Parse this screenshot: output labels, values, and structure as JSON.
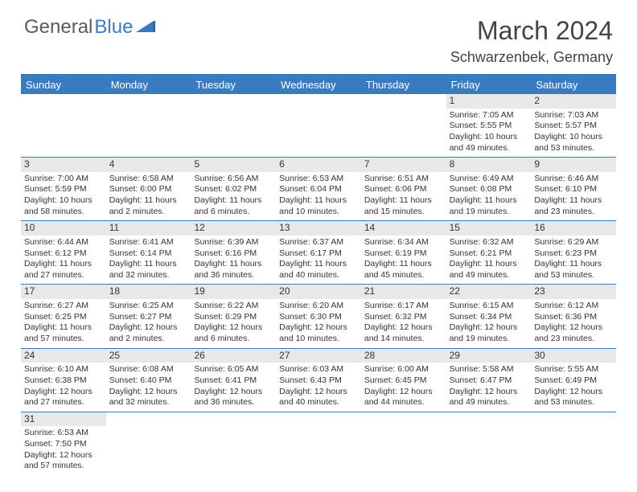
{
  "logo": {
    "text1": "General",
    "text2": "Blue"
  },
  "title": "March 2024",
  "location": "Schwarzenbek, Germany",
  "colors": {
    "header_bg": "#3a7bbf",
    "daynum_bg": "#e8e8e8",
    "text": "#333333",
    "border": "#3a7bbf"
  },
  "day_headers": [
    "Sunday",
    "Monday",
    "Tuesday",
    "Wednesday",
    "Thursday",
    "Friday",
    "Saturday"
  ],
  "weeks": [
    [
      null,
      null,
      null,
      null,
      null,
      {
        "n": "1",
        "sr": "Sunrise: 7:05 AM",
        "ss": "Sunset: 5:55 PM",
        "dl1": "Daylight: 10 hours",
        "dl2": "and 49 minutes."
      },
      {
        "n": "2",
        "sr": "Sunrise: 7:03 AM",
        "ss": "Sunset: 5:57 PM",
        "dl1": "Daylight: 10 hours",
        "dl2": "and 53 minutes."
      }
    ],
    [
      {
        "n": "3",
        "sr": "Sunrise: 7:00 AM",
        "ss": "Sunset: 5:59 PM",
        "dl1": "Daylight: 10 hours",
        "dl2": "and 58 minutes."
      },
      {
        "n": "4",
        "sr": "Sunrise: 6:58 AM",
        "ss": "Sunset: 6:00 PM",
        "dl1": "Daylight: 11 hours",
        "dl2": "and 2 minutes."
      },
      {
        "n": "5",
        "sr": "Sunrise: 6:56 AM",
        "ss": "Sunset: 6:02 PM",
        "dl1": "Daylight: 11 hours",
        "dl2": "and 6 minutes."
      },
      {
        "n": "6",
        "sr": "Sunrise: 6:53 AM",
        "ss": "Sunset: 6:04 PM",
        "dl1": "Daylight: 11 hours",
        "dl2": "and 10 minutes."
      },
      {
        "n": "7",
        "sr": "Sunrise: 6:51 AM",
        "ss": "Sunset: 6:06 PM",
        "dl1": "Daylight: 11 hours",
        "dl2": "and 15 minutes."
      },
      {
        "n": "8",
        "sr": "Sunrise: 6:49 AM",
        "ss": "Sunset: 6:08 PM",
        "dl1": "Daylight: 11 hours",
        "dl2": "and 19 minutes."
      },
      {
        "n": "9",
        "sr": "Sunrise: 6:46 AM",
        "ss": "Sunset: 6:10 PM",
        "dl1": "Daylight: 11 hours",
        "dl2": "and 23 minutes."
      }
    ],
    [
      {
        "n": "10",
        "sr": "Sunrise: 6:44 AM",
        "ss": "Sunset: 6:12 PM",
        "dl1": "Daylight: 11 hours",
        "dl2": "and 27 minutes."
      },
      {
        "n": "11",
        "sr": "Sunrise: 6:41 AM",
        "ss": "Sunset: 6:14 PM",
        "dl1": "Daylight: 11 hours",
        "dl2": "and 32 minutes."
      },
      {
        "n": "12",
        "sr": "Sunrise: 6:39 AM",
        "ss": "Sunset: 6:16 PM",
        "dl1": "Daylight: 11 hours",
        "dl2": "and 36 minutes."
      },
      {
        "n": "13",
        "sr": "Sunrise: 6:37 AM",
        "ss": "Sunset: 6:17 PM",
        "dl1": "Daylight: 11 hours",
        "dl2": "and 40 minutes."
      },
      {
        "n": "14",
        "sr": "Sunrise: 6:34 AM",
        "ss": "Sunset: 6:19 PM",
        "dl1": "Daylight: 11 hours",
        "dl2": "and 45 minutes."
      },
      {
        "n": "15",
        "sr": "Sunrise: 6:32 AM",
        "ss": "Sunset: 6:21 PM",
        "dl1": "Daylight: 11 hours",
        "dl2": "and 49 minutes."
      },
      {
        "n": "16",
        "sr": "Sunrise: 6:29 AM",
        "ss": "Sunset: 6:23 PM",
        "dl1": "Daylight: 11 hours",
        "dl2": "and 53 minutes."
      }
    ],
    [
      {
        "n": "17",
        "sr": "Sunrise: 6:27 AM",
        "ss": "Sunset: 6:25 PM",
        "dl1": "Daylight: 11 hours",
        "dl2": "and 57 minutes."
      },
      {
        "n": "18",
        "sr": "Sunrise: 6:25 AM",
        "ss": "Sunset: 6:27 PM",
        "dl1": "Daylight: 12 hours",
        "dl2": "and 2 minutes."
      },
      {
        "n": "19",
        "sr": "Sunrise: 6:22 AM",
        "ss": "Sunset: 6:29 PM",
        "dl1": "Daylight: 12 hours",
        "dl2": "and 6 minutes."
      },
      {
        "n": "20",
        "sr": "Sunrise: 6:20 AM",
        "ss": "Sunset: 6:30 PM",
        "dl1": "Daylight: 12 hours",
        "dl2": "and 10 minutes."
      },
      {
        "n": "21",
        "sr": "Sunrise: 6:17 AM",
        "ss": "Sunset: 6:32 PM",
        "dl1": "Daylight: 12 hours",
        "dl2": "and 14 minutes."
      },
      {
        "n": "22",
        "sr": "Sunrise: 6:15 AM",
        "ss": "Sunset: 6:34 PM",
        "dl1": "Daylight: 12 hours",
        "dl2": "and 19 minutes."
      },
      {
        "n": "23",
        "sr": "Sunrise: 6:12 AM",
        "ss": "Sunset: 6:36 PM",
        "dl1": "Daylight: 12 hours",
        "dl2": "and 23 minutes."
      }
    ],
    [
      {
        "n": "24",
        "sr": "Sunrise: 6:10 AM",
        "ss": "Sunset: 6:38 PM",
        "dl1": "Daylight: 12 hours",
        "dl2": "and 27 minutes."
      },
      {
        "n": "25",
        "sr": "Sunrise: 6:08 AM",
        "ss": "Sunset: 6:40 PM",
        "dl1": "Daylight: 12 hours",
        "dl2": "and 32 minutes."
      },
      {
        "n": "26",
        "sr": "Sunrise: 6:05 AM",
        "ss": "Sunset: 6:41 PM",
        "dl1": "Daylight: 12 hours",
        "dl2": "and 36 minutes."
      },
      {
        "n": "27",
        "sr": "Sunrise: 6:03 AM",
        "ss": "Sunset: 6:43 PM",
        "dl1": "Daylight: 12 hours",
        "dl2": "and 40 minutes."
      },
      {
        "n": "28",
        "sr": "Sunrise: 6:00 AM",
        "ss": "Sunset: 6:45 PM",
        "dl1": "Daylight: 12 hours",
        "dl2": "and 44 minutes."
      },
      {
        "n": "29",
        "sr": "Sunrise: 5:58 AM",
        "ss": "Sunset: 6:47 PM",
        "dl1": "Daylight: 12 hours",
        "dl2": "and 49 minutes."
      },
      {
        "n": "30",
        "sr": "Sunrise: 5:55 AM",
        "ss": "Sunset: 6:49 PM",
        "dl1": "Daylight: 12 hours",
        "dl2": "and 53 minutes."
      }
    ],
    [
      {
        "n": "31",
        "sr": "Sunrise: 6:53 AM",
        "ss": "Sunset: 7:50 PM",
        "dl1": "Daylight: 12 hours",
        "dl2": "and 57 minutes."
      },
      null,
      null,
      null,
      null,
      null,
      null
    ]
  ]
}
